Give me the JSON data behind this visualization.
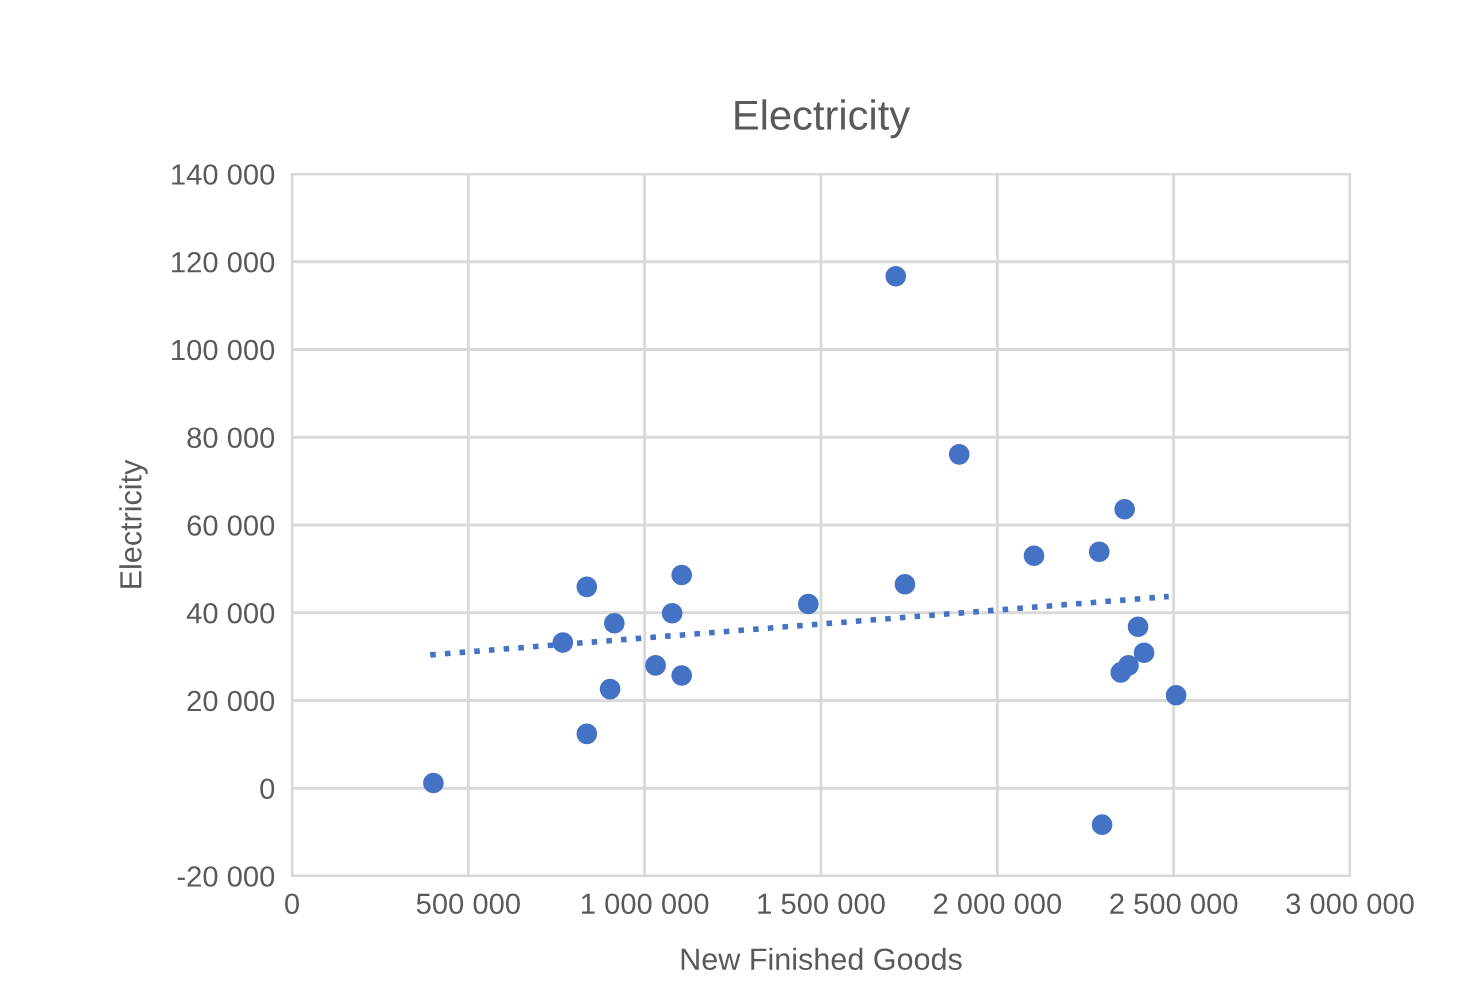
{
  "chart_data": {
    "type": "scatter",
    "title": "Electricity",
    "xlabel": "New Finished Goods",
    "ylabel": "Electricity",
    "series": [
      {
        "color": "#4472c4",
        "x": [
          401000,
          768000,
          836000,
          836000,
          914000,
          902000,
          1031000,
          1078000,
          1105000,
          1105000,
          1464000,
          1712000,
          1892000,
          1738000,
          2104000,
          2289000,
          2361000,
          2399000,
          2416000,
          2350000,
          2372000,
          2507000,
          2297000
        ],
        "values": [
          1200,
          33200,
          45900,
          12400,
          37600,
          22600,
          28000,
          39900,
          48600,
          25700,
          42000,
          116700,
          76100,
          46500,
          53000,
          53900,
          63600,
          36800,
          30900,
          26400,
          28000,
          21200,
          -8300
        ],
        "marker": "circle"
      },
      {
        "type": "line",
        "color": "#4472c4",
        "x": [
          392000,
          2486000
        ],
        "values": [
          30400,
          43700
        ],
        "line_style": "dotted",
        "marker": "none"
      }
    ],
    "xlim": [
      0,
      3000000
    ],
    "ylim": [
      -20000,
      140000
    ],
    "xticks": [
      0,
      {
        "value": 500000,
        "label": "500 000"
      },
      {
        "value": 1000000,
        "label": "1 000 000"
      },
      {
        "value": 1500000,
        "label": "1 500 000"
      },
      {
        "value": 2000000,
        "label": "2 000 000"
      },
      {
        "value": 2500000,
        "label": "2 500 000"
      },
      {
        "value": 3000000,
        "label": "3 000 000"
      }
    ],
    "yticks": [
      {
        "value": -20000,
        "label": "-20 000"
      },
      0,
      {
        "value": 20000,
        "label": "20 000"
      },
      {
        "value": 40000,
        "label": "40 000"
      },
      {
        "value": 60000,
        "label": "60 000"
      },
      {
        "value": 80000,
        "label": "80 000"
      },
      {
        "value": 100000,
        "label": "100 000"
      },
      {
        "value": 120000,
        "label": "120 000"
      },
      {
        "value": 140000,
        "label": "140 000"
      }
    ],
    "grid": true,
    "legend": false
  }
}
